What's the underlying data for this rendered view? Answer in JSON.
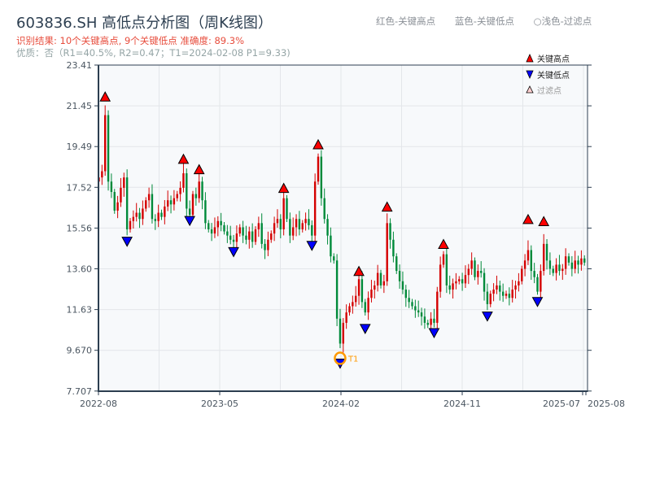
{
  "header": {
    "title": "603836.SH 高低点分析图（周K线图）",
    "result_line": "识别结果: 10个关键高点, 9个关键低点  准确度: 89.3%",
    "quality_line": "优质：否（R1=40.5%, R2=0.47；T1=2024-02-08 P1=9.33)",
    "hints": [
      "红色-关键高点",
      "蓝色-关键低点",
      "○浅色-过滤点"
    ]
  },
  "colors": {
    "up": "#d40000",
    "down": "#008a3a",
    "high_marker": "#ff0000",
    "low_marker": "#0000ff",
    "t1_ring": "#ff9900",
    "plot_bg": "#f7f9fb",
    "grid": "#e3e6ea",
    "axis": "#2c3e50"
  },
  "chart_data": {
    "type": "candlestick",
    "frequency": "weekly",
    "xlim": [
      "2022-08",
      "2025-08"
    ],
    "ylim": [
      7.707,
      23.41
    ],
    "y_ticks": [
      "23.41",
      "21.45",
      "19.49",
      "17.52",
      "15.56",
      "13.60",
      "11.63",
      "9.670",
      "7.707"
    ],
    "x_ticks": [
      "2022-08",
      "2023-05",
      "2024-02",
      "2024-11",
      "2025-07",
      "2025-08"
    ],
    "grid": true,
    "legend": {
      "placement": "top-right",
      "items": [
        "关键高点",
        "关键低点",
        "过滤点"
      ]
    },
    "closes": [
      18.0,
      18.3,
      21.0,
      17.8,
      17.3,
      16.4,
      16.8,
      17.5,
      18.0,
      15.5,
      15.9,
      16.1,
      16.3,
      16.0,
      16.5,
      16.9,
      17.2,
      16.0,
      15.9,
      16.3,
      16.1,
      16.6,
      16.9,
      16.7,
      17.0,
      17.2,
      17.5,
      18.2,
      16.5,
      16.2,
      17.2,
      17.0,
      17.8,
      16.9,
      15.8,
      15.5,
      15.3,
      15.6,
      15.9,
      15.7,
      15.4,
      15.2,
      15.0,
      14.9,
      15.3,
      15.6,
      15.2,
      15.0,
      15.4,
      14.9,
      15.5,
      15.8,
      14.8,
      14.5,
      15.0,
      15.3,
      15.8,
      16.0,
      15.5,
      17.0,
      16.0,
      15.2,
      15.6,
      16.0,
      15.5,
      15.8,
      16.0,
      15.7,
      15.2,
      17.8,
      19.0,
      17.0,
      16.0,
      15.2,
      14.2,
      14.0,
      11.2,
      10.0,
      11.0,
      11.5,
      11.8,
      12.0,
      12.3,
      13.1,
      12.0,
      11.5,
      12.2,
      12.6,
      12.8,
      13.4,
      12.8,
      13.0,
      15.8,
      15.0,
      14.2,
      13.5,
      13.0,
      12.6,
      12.2,
      12.0,
      11.8,
      11.6,
      11.5,
      11.3,
      11.0,
      10.9,
      11.2,
      11.0,
      12.5,
      13.8,
      14.3,
      12.8,
      12.6,
      12.9,
      13.0,
      13.1,
      12.9,
      13.3,
      13.6,
      14.0,
      13.2,
      13.5,
      13.4,
      12.5,
      11.9,
      12.4,
      12.6,
      12.8,
      12.5,
      12.3,
      12.4,
      12.2,
      12.6,
      12.8,
      13.0,
      13.6,
      14.0,
      14.5,
      13.5,
      13.2,
      12.5,
      13.5,
      14.8,
      14.0,
      13.6,
      13.4,
      13.8,
      13.5,
      13.6,
      14.2,
      13.9,
      13.6,
      14.0,
      13.8,
      14.1,
      13.9
    ],
    "key_highs": [
      {
        "week": 2,
        "price": 21.6
      },
      {
        "week": 27,
        "price": 18.6
      },
      {
        "week": 32,
        "price": 18.1
      },
      {
        "week": 59,
        "price": 17.2
      },
      {
        "week": 70,
        "price": 19.3
      },
      {
        "week": 83,
        "price": 13.2
      },
      {
        "week": 92,
        "price": 16.3
      },
      {
        "week": 110,
        "price": 14.5
      },
      {
        "week": 137,
        "price": 15.7
      },
      {
        "week": 142,
        "price": 15.6
      }
    ],
    "key_lows": [
      {
        "week": 9,
        "price": 15.2
      },
      {
        "week": 29,
        "price": 16.2
      },
      {
        "week": 43,
        "price": 14.7
      },
      {
        "week": 68,
        "price": 15.0
      },
      {
        "week": 77,
        "price": 9.33
      },
      {
        "week": 85,
        "price": 11.0
      },
      {
        "week": 107,
        "price": 10.8
      },
      {
        "week": 124,
        "price": 11.6
      },
      {
        "week": 140,
        "price": 12.3
      }
    ],
    "annotation": {
      "label": "T1",
      "week": 77,
      "price": 9.33
    }
  }
}
